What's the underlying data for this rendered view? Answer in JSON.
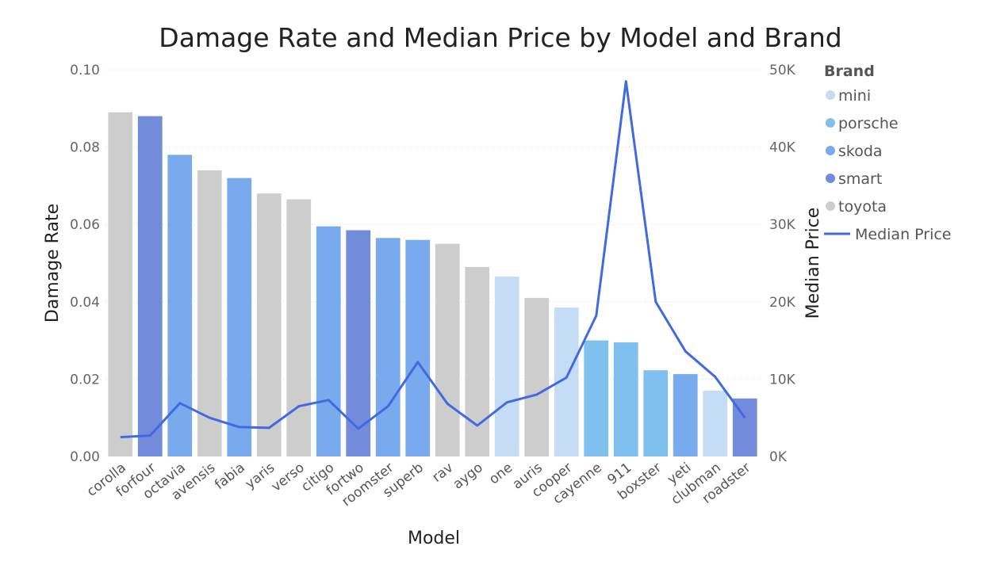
{
  "chart_data": {
    "type": "bar",
    "title": "Damage Rate and Median Price by Model and Brand",
    "xlabel": "Model",
    "ylabel": "Damage Rate",
    "ylabel_right": "Median Price",
    "ylim": [
      0,
      0.1
    ],
    "ylim_right": [
      0,
      50000
    ],
    "y_ticks": [
      "0.00",
      "0.02",
      "0.04",
      "0.06",
      "0.08",
      "0.10"
    ],
    "y_right_ticks": [
      "0K",
      "10K",
      "20K",
      "30K",
      "40K",
      "50K"
    ],
    "legend": {
      "title": "Brand",
      "position": "right",
      "brands": [
        {
          "name": "mini",
          "color": "#c4dcf6"
        },
        {
          "name": "porsche",
          "color": "#7fc0ef"
        },
        {
          "name": "skoda",
          "color": "#7aaaee"
        },
        {
          "name": "smart",
          "color": "#728bdb"
        },
        {
          "name": "toyota",
          "color": "#cdcdcd"
        }
      ],
      "line_label": "Median Price",
      "line_color": "#4169e1"
    },
    "categories": [
      "corolla",
      "forfour",
      "octavia",
      "avensis",
      "fabia",
      "yaris",
      "verso",
      "citigo",
      "fortwo",
      "roomster",
      "superb",
      "rav",
      "aygo",
      "one",
      "auris",
      "cooper",
      "cayenne",
      "911",
      "boxster",
      "yeti",
      "clubman",
      "roadster"
    ],
    "brands": [
      "toyota",
      "smart",
      "skoda",
      "toyota",
      "skoda",
      "toyota",
      "toyota",
      "skoda",
      "smart",
      "skoda",
      "skoda",
      "toyota",
      "toyota",
      "mini",
      "toyota",
      "mini",
      "porsche",
      "porsche",
      "porsche",
      "skoda",
      "mini",
      "smart"
    ],
    "series": [
      {
        "name": "Damage Rate",
        "type": "bar",
        "axis": "left",
        "values": [
          0.089,
          0.088,
          0.078,
          0.074,
          0.072,
          0.068,
          0.0665,
          0.0595,
          0.0585,
          0.0565,
          0.056,
          0.055,
          0.049,
          0.0465,
          0.041,
          0.0385,
          0.03,
          0.0295,
          0.0223,
          0.0213,
          0.017,
          0.015
        ]
      },
      {
        "name": "Median Price",
        "type": "line",
        "axis": "right",
        "values": [
          2500,
          2700,
          6900,
          5000,
          3800,
          3700,
          6500,
          7300,
          3600,
          6500,
          12200,
          6800,
          4000,
          7000,
          8000,
          10200,
          18200,
          48500,
          20000,
          13600,
          10300,
          5000
        ]
      }
    ]
  }
}
